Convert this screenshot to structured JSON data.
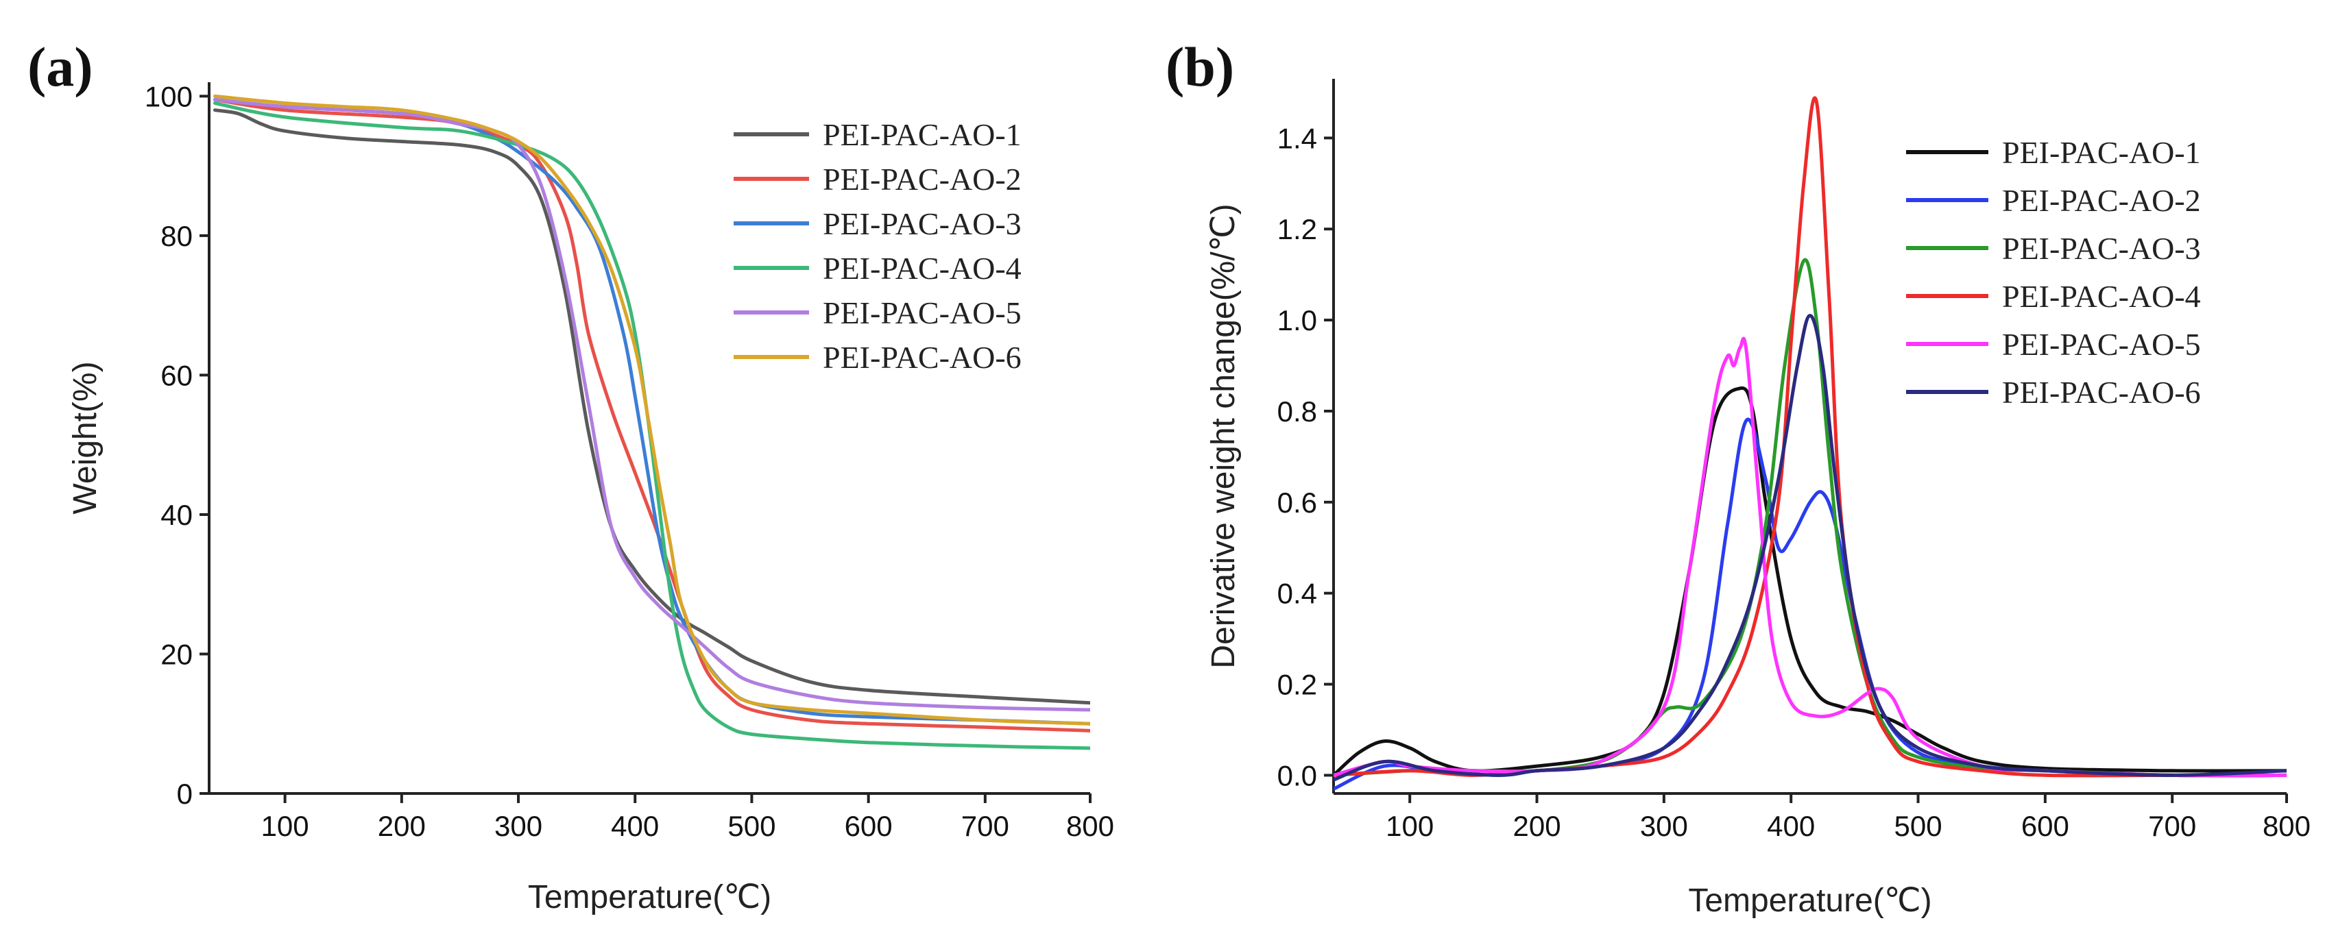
{
  "chart_data": [
    {
      "type": "line",
      "panel_label": "(a)",
      "xlabel": "Temperature(℃)",
      "ylabel": "Weight(%)",
      "xlim": [
        35,
        790
      ],
      "ylim": [
        0,
        102
      ],
      "xticks": [
        100,
        200,
        300,
        400,
        500,
        600,
        700,
        800
      ],
      "yticks": [
        0,
        20,
        40,
        60,
        80,
        100
      ],
      "legend_position": "top-right",
      "series": [
        {
          "name": "PEI-PAC-AO-1",
          "color": "#5a5a5a",
          "x": [
            40,
            60,
            80,
            100,
            150,
            200,
            250,
            280,
            300,
            320,
            340,
            360,
            380,
            400,
            420,
            440,
            460,
            480,
            500,
            550,
            600,
            700,
            790
          ],
          "y": [
            98,
            97.5,
            96,
            95,
            94,
            93.5,
            93,
            92,
            90,
            85,
            72,
            52,
            38,
            32,
            28,
            25,
            23,
            21,
            19,
            16,
            14.8,
            13.8,
            13
          ]
        },
        {
          "name": "PEI-PAC-AO-2",
          "color": "#e8504a",
          "x": [
            40,
            100,
            200,
            250,
            300,
            320,
            340,
            350,
            360,
            380,
            400,
            420,
            440,
            460,
            480,
            500,
            550,
            600,
            700,
            790
          ],
          "y": [
            99.5,
            98,
            97,
            96,
            93,
            90,
            83,
            76,
            66,
            55,
            46,
            37,
            27,
            18,
            14,
            12,
            10.5,
            10,
            9.5,
            9
          ]
        },
        {
          "name": "PEI-PAC-AO-3",
          "color": "#3c7ed6",
          "x": [
            40,
            100,
            200,
            250,
            280,
            300,
            330,
            350,
            370,
            390,
            400,
            410,
            420,
            430,
            440,
            460,
            480,
            500,
            550,
            600,
            700,
            790
          ],
          "y": [
            99.5,
            98.5,
            97.5,
            96,
            94,
            92,
            88,
            84,
            78,
            66,
            57,
            47,
            37,
            30,
            25,
            19,
            15,
            13,
            11.5,
            11,
            10.5,
            10
          ]
        },
        {
          "name": "PEI-PAC-AO-4",
          "color": "#3cb878",
          "x": [
            40,
            100,
            200,
            250,
            300,
            330,
            350,
            370,
            390,
            400,
            410,
            420,
            430,
            440,
            450,
            460,
            480,
            500,
            550,
            600,
            700,
            790
          ],
          "y": [
            99,
            97,
            95.5,
            95,
            93,
            91,
            88,
            82,
            73,
            66,
            55,
            42,
            29,
            20,
            15,
            12,
            9.5,
            8.5,
            7.8,
            7.3,
            6.8,
            6.5
          ]
        },
        {
          "name": "PEI-PAC-AO-5",
          "color": "#b07ee0",
          "x": [
            40,
            100,
            200,
            250,
            280,
            300,
            320,
            340,
            360,
            380,
            400,
            420,
            440,
            460,
            480,
            500,
            550,
            600,
            700,
            790
          ],
          "y": [
            99.5,
            98.5,
            97.5,
            96,
            95,
            93,
            87,
            74,
            56,
            38,
            31,
            27,
            24,
            21,
            18,
            16,
            14,
            13,
            12.3,
            12
          ]
        },
        {
          "name": "PEI-PAC-AO-6",
          "color": "#d9a62a",
          "x": [
            40,
            100,
            150,
            200,
            250,
            280,
            300,
            320,
            340,
            360,
            380,
            400,
            410,
            420,
            430,
            440,
            460,
            480,
            500,
            550,
            600,
            700,
            790
          ],
          "y": [
            100,
            99,
            98.5,
            98,
            96.5,
            95,
            93.5,
            91,
            87,
            82,
            75,
            64,
            55,
            45,
            36,
            27,
            19,
            15,
            13,
            12,
            11.5,
            10.5,
            10
          ]
        }
      ]
    },
    {
      "type": "line",
      "panel_label": "(b)",
      "xlabel": "Temperature(℃)",
      "ylabel": "Derivative weight change(%/℃)",
      "xlim": [
        40,
        790
      ],
      "ylim": [
        -0.04,
        1.53
      ],
      "xticks": [
        100,
        200,
        300,
        400,
        500,
        600,
        700,
        800
      ],
      "yticks": [
        0.0,
        0.2,
        0.4,
        0.6,
        0.8,
        1.0,
        1.2,
        1.4
      ],
      "legend_position": "top-right",
      "series": [
        {
          "name": "PEI-PAC-AO-1",
          "color": "#111111",
          "x": [
            40,
            60,
            80,
            100,
            120,
            150,
            200,
            250,
            280,
            300,
            320,
            340,
            360,
            370,
            380,
            400,
            420,
            440,
            460,
            480,
            500,
            520,
            550,
            600,
            700,
            790
          ],
          "y": [
            0.0,
            0.05,
            0.075,
            0.06,
            0.03,
            0.01,
            0.02,
            0.04,
            0.08,
            0.18,
            0.45,
            0.78,
            0.85,
            0.8,
            0.6,
            0.3,
            0.18,
            0.15,
            0.14,
            0.12,
            0.09,
            0.06,
            0.03,
            0.015,
            0.01,
            0.01
          ]
        },
        {
          "name": "PEI-PAC-AO-2",
          "color": "#2a3cf0",
          "x": [
            40,
            80,
            120,
            170,
            200,
            250,
            300,
            330,
            350,
            365,
            380,
            390,
            400,
            415,
            425,
            435,
            450,
            470,
            500,
            550,
            600,
            700,
            790
          ],
          "y": [
            -0.03,
            0.02,
            0.01,
            0.0,
            0.01,
            0.02,
            0.06,
            0.2,
            0.55,
            0.78,
            0.65,
            0.5,
            0.52,
            0.6,
            0.62,
            0.55,
            0.35,
            0.15,
            0.05,
            0.02,
            0.01,
            0.0,
            0.0
          ]
        },
        {
          "name": "PEI-PAC-AO-3",
          "color": "#2a9a2a",
          "x": [
            40,
            100,
            150,
            200,
            250,
            280,
            300,
            310,
            330,
            360,
            380,
            395,
            410,
            420,
            430,
            440,
            460,
            480,
            500,
            550,
            600,
            700,
            790
          ],
          "y": [
            0.0,
            0.01,
            0.01,
            0.01,
            0.03,
            0.08,
            0.14,
            0.15,
            0.16,
            0.3,
            0.55,
            0.9,
            1.13,
            1.0,
            0.7,
            0.45,
            0.2,
            0.08,
            0.04,
            0.015,
            0.01,
            0.0,
            0.0
          ]
        },
        {
          "name": "PEI-PAC-AO-4",
          "color": "#ee2a2a",
          "x": [
            40,
            100,
            150,
            200,
            250,
            300,
            330,
            350,
            370,
            390,
            400,
            410,
            420,
            430,
            440,
            460,
            480,
            500,
            550,
            600,
            700,
            790
          ],
          "y": [
            0.0,
            0.01,
            0.0,
            0.01,
            0.02,
            0.04,
            0.1,
            0.18,
            0.32,
            0.6,
            0.95,
            1.3,
            1.48,
            1.05,
            0.55,
            0.2,
            0.07,
            0.03,
            0.01,
            0.0,
            0.0,
            0.0
          ]
        },
        {
          "name": "PEI-PAC-AO-5",
          "color": "#ff33ff",
          "x": [
            40,
            80,
            100,
            150,
            200,
            250,
            300,
            320,
            340,
            350,
            355,
            360,
            365,
            375,
            385,
            400,
            420,
            440,
            460,
            470,
            480,
            500,
            550,
            600,
            700,
            790
          ],
          "y": [
            0.0,
            0.03,
            0.02,
            0.01,
            0.01,
            0.03,
            0.15,
            0.45,
            0.82,
            0.92,
            0.9,
            0.94,
            0.93,
            0.6,
            0.3,
            0.16,
            0.13,
            0.14,
            0.18,
            0.19,
            0.17,
            0.08,
            0.02,
            0.01,
            0.0,
            0.0
          ]
        },
        {
          "name": "PEI-PAC-AO-6",
          "color": "#2a2a80",
          "x": [
            40,
            80,
            120,
            170,
            200,
            250,
            300,
            330,
            350,
            370,
            390,
            405,
            415,
            425,
            435,
            450,
            470,
            500,
            550,
            600,
            700,
            790
          ],
          "y": [
            -0.01,
            0.03,
            0.01,
            0.0,
            0.01,
            0.02,
            0.06,
            0.15,
            0.25,
            0.4,
            0.65,
            0.9,
            1.01,
            0.9,
            0.65,
            0.35,
            0.15,
            0.06,
            0.02,
            0.01,
            0.0,
            0.01
          ]
        }
      ]
    }
  ]
}
